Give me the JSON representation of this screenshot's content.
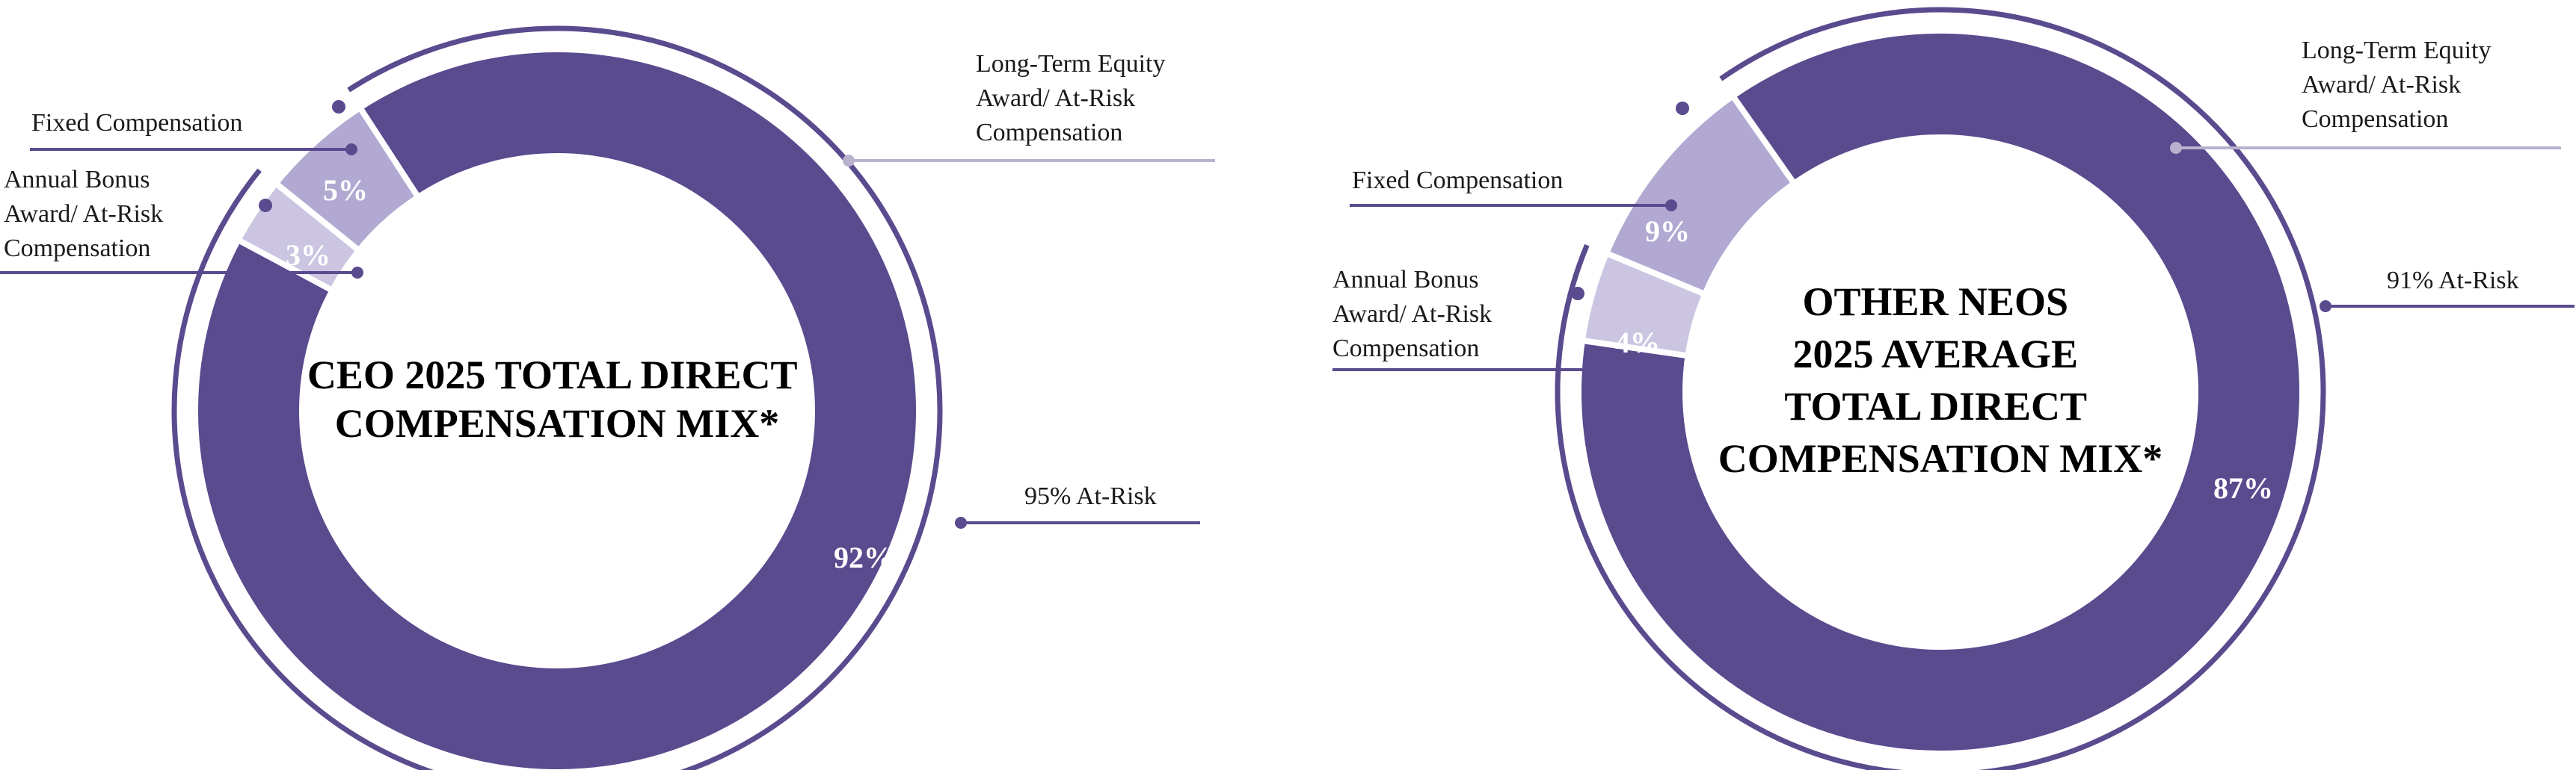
{
  "colors": {
    "at_risk_dark": "#5a4a8e",
    "at_risk_light": "#b2a9d2",
    "at_risk_lighter": "#cbc5e2",
    "outer_ring": "#5a4a8e",
    "leader_light": "#b8b2cf",
    "text": "#1a1a1a"
  },
  "chart_data": [
    {
      "type": "pie",
      "title": "CEO 2025 TOTAL DIRECT COMPENSATION MIX*",
      "title_lines": [
        "CEO 2025 TOTAL DIRECT",
        "COMPENSATION MIX*"
      ],
      "slices": [
        {
          "name": "Long-Term Equity Award/ At-Risk Compensation",
          "value": 92,
          "label": "92%",
          "label_lines": [
            "Long-Term Equity",
            "Award/ At-Risk",
            "Compensation"
          ]
        },
        {
          "name": "Annual Bonus Award/ At-Risk Compensation",
          "value": 3,
          "label": "3%",
          "label_lines": [
            "Annual Bonus",
            "Award/ At-Risk",
            "Compensation"
          ]
        },
        {
          "name": "Fixed Compensation",
          "value": 5,
          "label": "5%",
          "label_lines": [
            "Fixed Compensation"
          ]
        }
      ],
      "at_risk_total": 95,
      "at_risk_label": "95% At-Risk"
    },
    {
      "type": "pie",
      "title": "OTHER NEOS 2025 AVERAGE TOTAL DIRECT COMPENSATION MIX*",
      "title_lines": [
        "OTHER NEOS",
        "2025 AVERAGE",
        "TOTAL DIRECT",
        "COMPENSATION MIX*"
      ],
      "slices": [
        {
          "name": "Long-Term Equity Award/ At-Risk Compensation",
          "value": 87,
          "label": "87%",
          "label_lines": [
            "Long-Term Equity",
            "Award/ At-Risk",
            "Compensation"
          ]
        },
        {
          "name": "Annual Bonus Award/ At-Risk Compensation",
          "value": 4,
          "label": "4%",
          "label_lines": [
            "Annual Bonus",
            "Award/ At-Risk",
            "Compensation"
          ]
        },
        {
          "name": "Fixed Compensation",
          "value": 9,
          "label": "9%",
          "label_lines": [
            "Fixed Compensation"
          ]
        }
      ],
      "at_risk_total": 91,
      "at_risk_label": "91% At-Risk"
    }
  ]
}
